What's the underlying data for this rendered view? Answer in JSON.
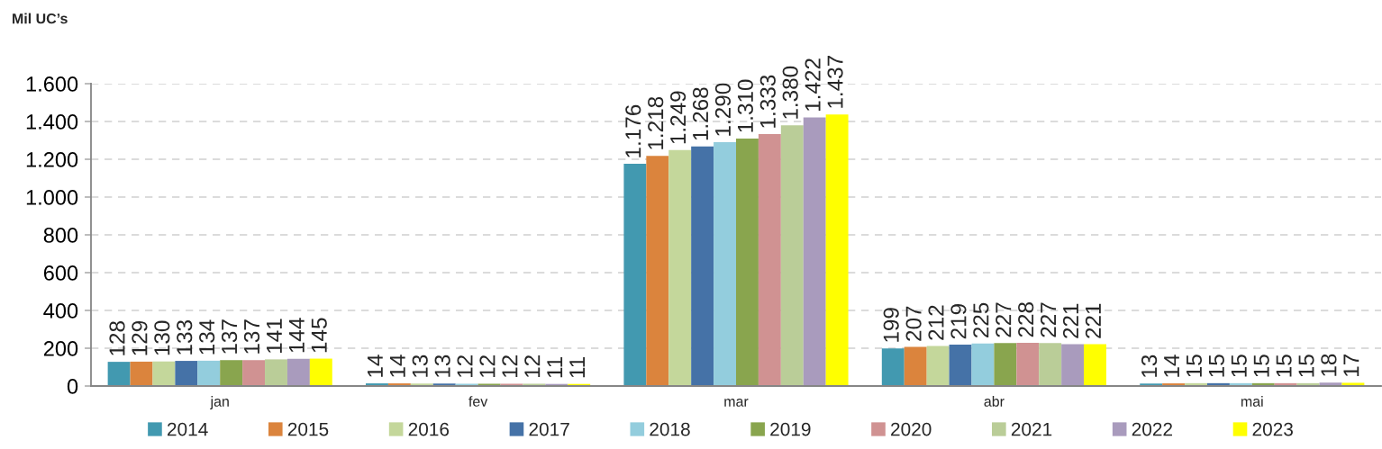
{
  "chart_data": {
    "type": "bar",
    "ylabel": "Mil UC’s",
    "categories": [
      "jan",
      "fev",
      "mar",
      "abr",
      "mai"
    ],
    "series": [
      {
        "name": "2014",
        "color": "#4299b0",
        "values": [
          128,
          14,
          1176,
          199,
          13
        ],
        "value_labels": [
          "128",
          "14",
          "1.176",
          "199",
          "13"
        ]
      },
      {
        "name": "2015",
        "color": "#db843d",
        "values": [
          129,
          14,
          1218,
          207,
          14
        ],
        "value_labels": [
          "129",
          "14",
          "1.218",
          "207",
          "14"
        ]
      },
      {
        "name": "2016",
        "color": "#c4d79b",
        "values": [
          130,
          13,
          1249,
          212,
          15
        ],
        "value_labels": [
          "130",
          "13",
          "1.249",
          "212",
          "15"
        ]
      },
      {
        "name": "2017",
        "color": "#4572a7",
        "values": [
          133,
          13,
          1268,
          219,
          15
        ],
        "value_labels": [
          "133",
          "13",
          "1.268",
          "219",
          "15"
        ]
      },
      {
        "name": "2018",
        "color": "#93cddd",
        "values": [
          134,
          12,
          1290,
          225,
          15
        ],
        "value_labels": [
          "134",
          "12",
          "1.290",
          "225",
          "15"
        ]
      },
      {
        "name": "2019",
        "color": "#89a54e",
        "values": [
          137,
          12,
          1310,
          227,
          15
        ],
        "value_labels": [
          "137",
          "12",
          "1.310",
          "227",
          "15"
        ]
      },
      {
        "name": "2020",
        "color": "#d09292",
        "values": [
          137,
          12,
          1333,
          228,
          15
        ],
        "value_labels": [
          "137",
          "12",
          "1.333",
          "228",
          "15"
        ]
      },
      {
        "name": "2021",
        "color": "#bacd98",
        "values": [
          141,
          12,
          1380,
          227,
          15
        ],
        "value_labels": [
          "141",
          "12",
          "1.380",
          "227",
          "15"
        ]
      },
      {
        "name": "2022",
        "color": "#a99bbd",
        "values": [
          144,
          11,
          1422,
          221,
          18
        ],
        "value_labels": [
          "144",
          "11",
          "1.422",
          "221",
          "18"
        ]
      },
      {
        "name": "2023",
        "color": "#ffff00",
        "values": [
          145,
          11,
          1437,
          221,
          17
        ],
        "value_labels": [
          "145",
          "11",
          "1.437",
          "221",
          "17"
        ]
      }
    ],
    "ylim": [
      0,
      1600
    ],
    "yticks": [
      0,
      200,
      400,
      600,
      800,
      {
        "value": 1000,
        "label": "1.000"
      },
      {
        "value": 1200,
        "label": "1.200"
      },
      {
        "value": 1400,
        "label": "1.400"
      },
      {
        "value": 1600,
        "label": "1.600"
      }
    ],
    "grid": "y",
    "legend": "bottom"
  }
}
